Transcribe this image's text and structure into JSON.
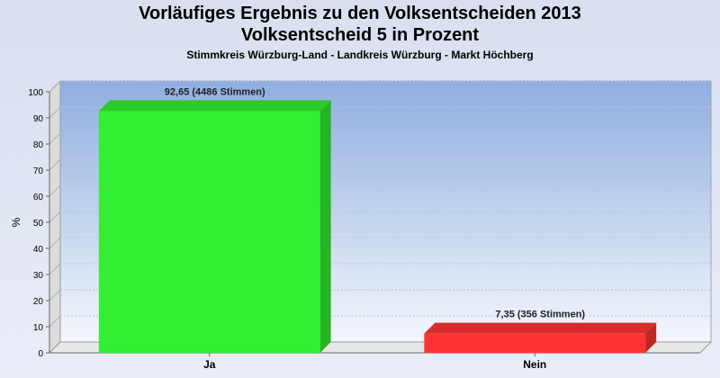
{
  "title_line1": "Vorläufiges Ergebnis zu den Volksentscheiden 2013",
  "title_line2": "Volksentscheid 5 in Prozent",
  "subtitle": "Stimmkreis Würzburg-Land - Landkreis Würzburg - Markt Höchberg",
  "chart_data": {
    "type": "bar",
    "categories": [
      "Ja",
      "Nein"
    ],
    "values": [
      92.65,
      7.35
    ],
    "value_labels": [
      "92,65 (4486 Stimmen)",
      "7,35 (356 Stimmen)"
    ],
    "colors": [
      "#33ee33",
      "#ff3333"
    ],
    "ylabel": "%",
    "ylim": [
      0,
      100
    ],
    "yticks": [
      0,
      10,
      20,
      30,
      40,
      50,
      60,
      70,
      80,
      90,
      100
    ],
    "grid": true,
    "legend": "none"
  }
}
